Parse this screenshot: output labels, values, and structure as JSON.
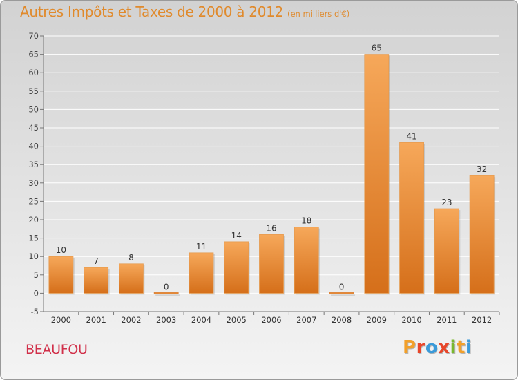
{
  "header": {
    "title": "Autres Impôts et Taxes de 2000 à 2012",
    "subtitle": "(en milliers d'€)"
  },
  "footer": {
    "commune": "BEAUFOU",
    "logo_letters": [
      "P",
      "r",
      "o",
      "x",
      "i",
      "t",
      "i"
    ],
    "logo_colors": [
      "#f2a02a",
      "#e8462a",
      "#3a9ad9",
      "#e8462a",
      "#79b82e",
      "#f2a02a",
      "#3a9ad9"
    ]
  },
  "colors": {
    "bar_top": "#f6a85a",
    "bar_bottom": "#d56f1a",
    "grid": "#ffffff",
    "title": "#e08a2c",
    "commune": "#d1304a"
  },
  "chart_data": {
    "type": "bar",
    "title": "Autres Impôts et Taxes de 2000 à 2012",
    "subtitle": "(en milliers d'€)",
    "categories": [
      "2000",
      "2001",
      "2002",
      "2003",
      "2004",
      "2005",
      "2006",
      "2007",
      "2008",
      "2009",
      "2010",
      "2011",
      "2012"
    ],
    "values": [
      10,
      7,
      8,
      0,
      11,
      14,
      16,
      18,
      0,
      65,
      41,
      23,
      32
    ],
    "data_labels": [
      "10",
      "7",
      "8",
      "0",
      "11",
      "14",
      "16",
      "18",
      "0",
      "65",
      "41",
      "23",
      "32"
    ],
    "ylim": [
      -5,
      70
    ],
    "yticks": [
      -5,
      0,
      5,
      10,
      15,
      20,
      25,
      30,
      35,
      40,
      45,
      50,
      55,
      60,
      65,
      70
    ],
    "xlabel": "",
    "ylabel": "",
    "grid": true,
    "legend": "none"
  }
}
